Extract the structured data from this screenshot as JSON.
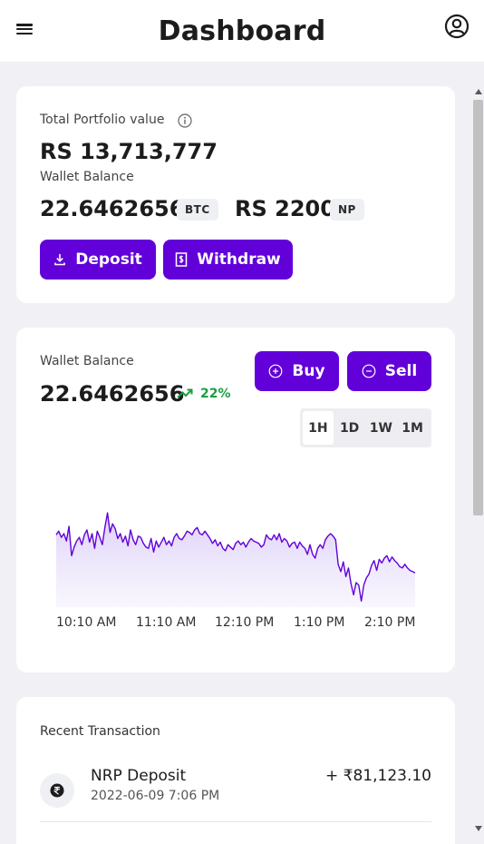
{
  "header": {
    "title": "Dashboard",
    "menu_icon": "hamburger-menu-icon",
    "account_icon": "account-circle-icon"
  },
  "portfolio": {
    "total_label": "Total Portfolio value",
    "total_value": "RS 13,713,777",
    "wallet_label": "Wallet Balance",
    "btc_amount": "22.6462656",
    "btc_tag": "BTC",
    "npr_amount": "RS 2200",
    "npr_tag": "NP",
    "deposit_label": "Deposit",
    "withdraw_label": "Withdraw"
  },
  "chart_card": {
    "wallet_label": "Wallet Balance",
    "balance": "22.6462656",
    "change": "22%",
    "change_color": "#1a9e3f",
    "buy_label": "Buy",
    "sell_label": "Sell",
    "timeframes": [
      "1H",
      "1D",
      "1W",
      "1M"
    ],
    "active_timeframe": "1H"
  },
  "chart_data": {
    "type": "area",
    "title": "",
    "xlabel": "",
    "ylabel": "",
    "x_ticks": [
      "10:10 AM",
      "11:10 AM",
      "12:10 PM",
      "1:10 PM",
      "2:10 PM"
    ],
    "y": [
      79,
      82,
      77,
      80,
      74,
      86,
      62,
      69,
      74,
      77,
      71,
      79,
      83,
      73,
      80,
      68,
      82,
      77,
      71,
      85,
      97,
      81,
      88,
      84,
      76,
      80,
      73,
      78,
      70,
      83,
      75,
      71,
      78,
      77,
      72,
      69,
      68,
      76,
      65,
      74,
      69,
      73,
      77,
      71,
      74,
      70,
      77,
      80,
      76,
      75,
      78,
      82,
      81,
      79,
      83,
      85,
      80,
      79,
      82,
      79,
      76,
      72,
      75,
      70,
      73,
      68,
      66,
      71,
      69,
      67,
      72,
      74,
      71,
      73,
      69,
      73,
      76,
      74,
      73,
      72,
      69,
      71,
      79,
      76,
      75,
      79,
      75,
      80,
      73,
      76,
      74,
      69,
      72,
      73,
      68,
      73,
      70,
      68,
      63,
      71,
      63,
      60,
      68,
      71,
      68,
      75,
      78,
      80,
      78,
      75,
      55,
      49,
      57,
      45,
      52,
      39,
      30,
      40,
      38,
      25,
      38,
      44,
      47,
      54,
      58,
      50,
      59,
      56,
      60,
      62,
      57,
      61,
      58,
      56,
      53,
      52,
      55,
      52,
      50,
      49,
      48
    ],
    "line_color": "#6200d9",
    "fill_color": "#e4dafb",
    "grid": false,
    "legend": "none"
  },
  "transactions": {
    "title": "Recent Transaction",
    "items": [
      {
        "title": "NRP Deposit",
        "date": "2022-06-09 7:06 PM",
        "amount": "+ ₹81,123.10",
        "icon": "rupee-coin-icon"
      }
    ]
  }
}
